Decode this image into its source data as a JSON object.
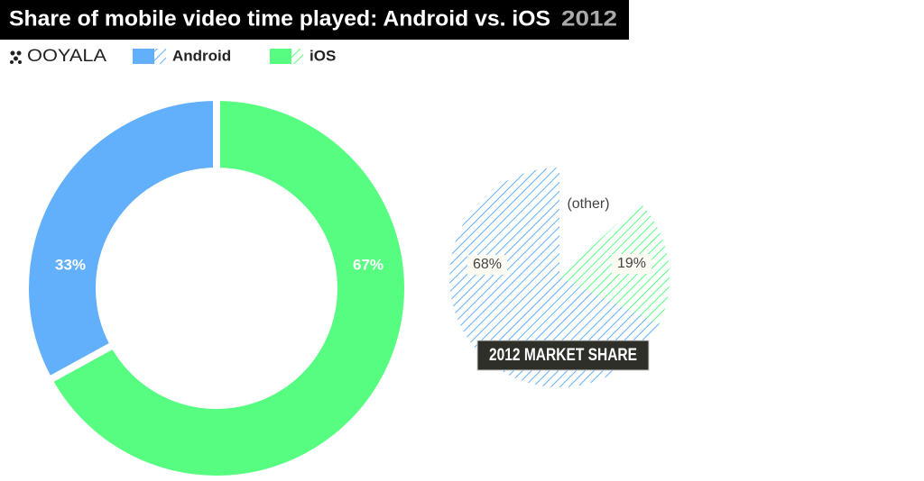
{
  "brand": "OOYALA",
  "chart_data": [
    {
      "type": "donut",
      "title": "Share of mobile video time played: Android vs. iOS",
      "title_year": "2012",
      "categories": [
        "Android",
        "iOS"
      ],
      "values": [
        33,
        67
      ],
      "value_labels": [
        "33%",
        "67%"
      ],
      "colors": [
        "#62b0fb",
        "#56fd80"
      ]
    },
    {
      "type": "pie",
      "title": "2012 MARKET SHARE",
      "hatched": true,
      "categories": [
        null,
        null,
        "(other)"
      ],
      "values": [
        68,
        19,
        13
      ],
      "value_labels": [
        "68%",
        "19%",
        null
      ],
      "colors": [
        "#62b0fb",
        "#56fd80",
        null
      ]
    }
  ]
}
